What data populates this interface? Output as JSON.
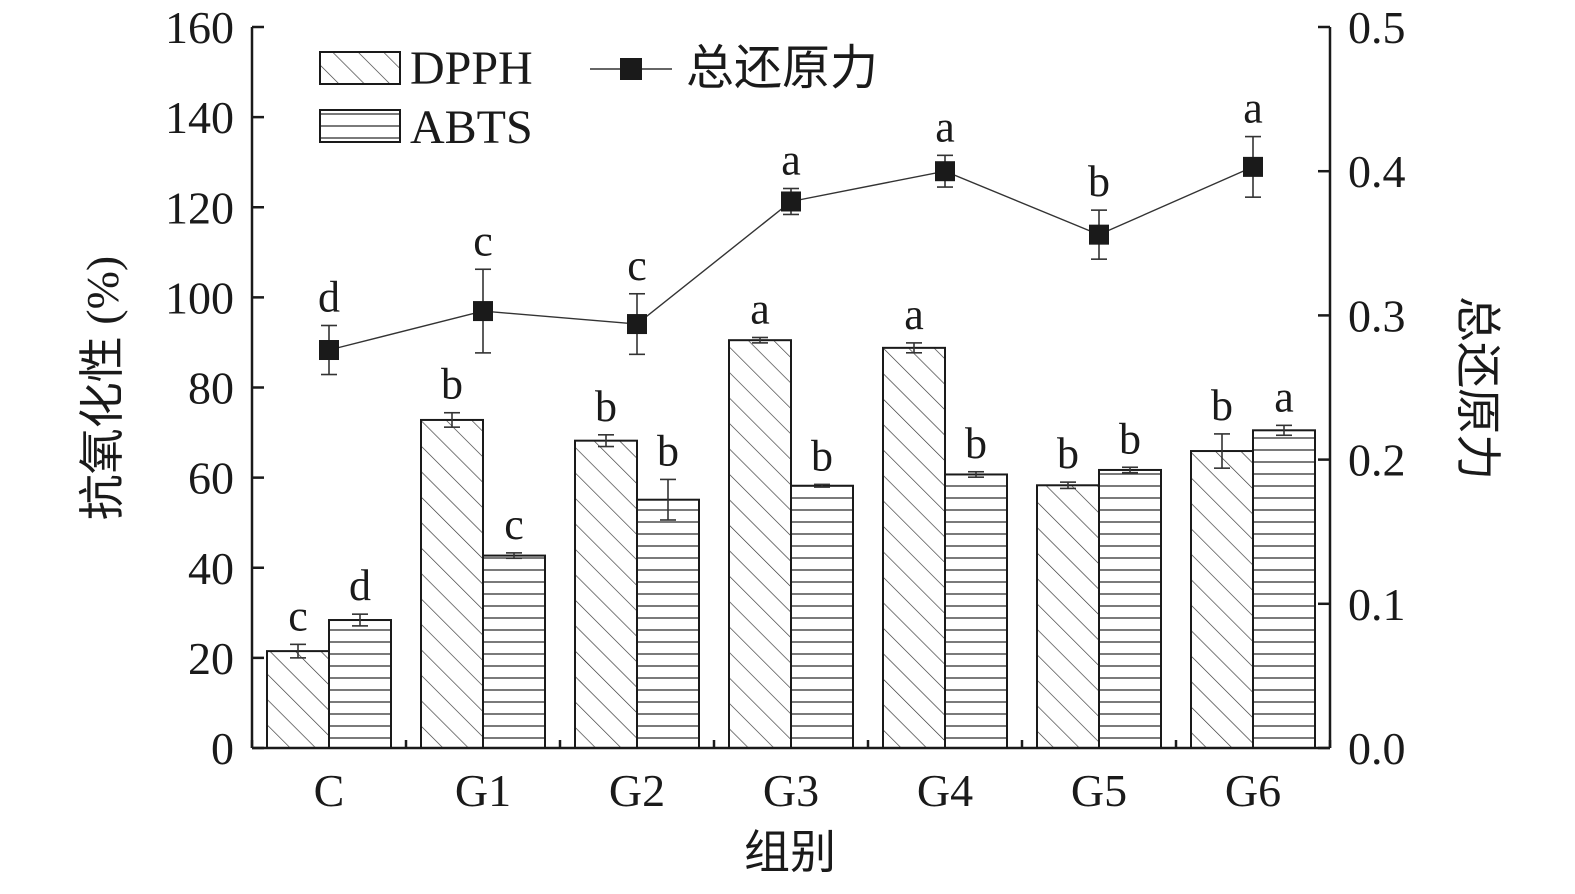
{
  "chart_data": {
    "type": "bar",
    "categories": [
      "C",
      "G1",
      "G2",
      "G3",
      "G4",
      "G5",
      "G6"
    ],
    "xlabel": "组别",
    "ylabel": "抗氧化性 (%)",
    "ylabel_right": "总还原力",
    "ylim": [
      0,
      160
    ],
    "yticks": [
      0,
      20,
      40,
      60,
      80,
      100,
      120,
      140,
      160
    ],
    "ylim_right": [
      0.0,
      0.5
    ],
    "yticks_right": [
      "0.0",
      "0.1",
      "0.2",
      "0.3",
      "0.4",
      "0.5"
    ],
    "legend": "top-left",
    "grid": false,
    "series": [
      {
        "name": "DPPH",
        "kind": "bar",
        "pattern": "diagonal-hatch",
        "values": [
          21.5,
          72.8,
          68.2,
          90.5,
          88.8,
          58.3,
          65.9
        ],
        "errors": [
          1.5,
          1.6,
          1.3,
          0.6,
          1.1,
          0.7,
          3.8
        ],
        "labels": [
          "c",
          "b",
          "b",
          "a",
          "a",
          "b",
          "b"
        ]
      },
      {
        "name": "ABTS",
        "kind": "bar",
        "pattern": "horizontal-hatch",
        "values": [
          28.4,
          42.7,
          55.1,
          58.2,
          60.7,
          61.7,
          70.5
        ],
        "errors": [
          1.3,
          0.6,
          4.5,
          0.3,
          0.6,
          0.6,
          1.1
        ],
        "labels": [
          "d",
          "c",
          "b",
          "b",
          "b",
          "b",
          "a"
        ]
      },
      {
        "name": "总还原力",
        "kind": "line",
        "axis": "right",
        "values": [
          0.276,
          0.303,
          0.294,
          0.379,
          0.4,
          0.356,
          0.403
        ],
        "errors": [
          0.017,
          0.029,
          0.021,
          0.009,
          0.011,
          0.017,
          0.021
        ],
        "labels": [
          "d",
          "c",
          "c",
          "a",
          "a",
          "b",
          "a"
        ]
      }
    ],
    "colors": {
      "ink": "#1a1a1a",
      "bar_fill": "#ffffff"
    }
  }
}
